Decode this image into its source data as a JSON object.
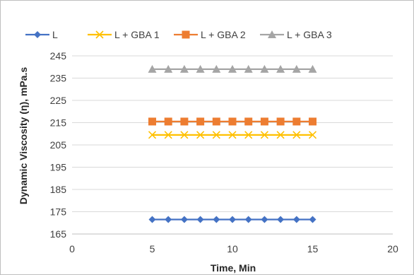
{
  "chart_data": {
    "type": "line",
    "xlabel": "Time, Min",
    "ylabel": "Dynamic Viscosity (η), mPa.s",
    "xlim": [
      0,
      20
    ],
    "ylim": [
      165,
      245
    ],
    "x_ticks": [
      0,
      5,
      10,
      15,
      20
    ],
    "y_ticks": [
      165,
      175,
      185,
      195,
      205,
      215,
      225,
      235,
      245
    ],
    "grid": "horizontal",
    "legend_position": "top",
    "x": [
      5,
      6,
      7,
      8,
      9,
      10,
      11,
      12,
      13,
      14,
      15
    ],
    "series": [
      {
        "name": "L",
        "values": [
          171.5,
          171.5,
          171.5,
          171.5,
          171.5,
          171.5,
          171.5,
          171.5,
          171.5,
          171.5,
          171.5
        ],
        "color": "#4472c4",
        "marker": "diamond"
      },
      {
        "name": "L + GBA 1",
        "values": [
          209.5,
          209.5,
          209.5,
          209.5,
          209.5,
          209.5,
          209.5,
          209.5,
          209.5,
          209.5,
          209.5
        ],
        "color": "#ffc000",
        "marker": "x"
      },
      {
        "name": "L + GBA 2",
        "values": [
          215.5,
          215.5,
          215.5,
          215.5,
          215.5,
          215.5,
          215.5,
          215.5,
          215.5,
          215.5,
          215.5
        ],
        "color": "#ed7d31",
        "marker": "square"
      },
      {
        "name": "L + GBA 3",
        "values": [
          239,
          239,
          239,
          239,
          239,
          239,
          239,
          239,
          239,
          239,
          239
        ],
        "color": "#a5a5a5",
        "marker": "triangle"
      }
    ]
  }
}
